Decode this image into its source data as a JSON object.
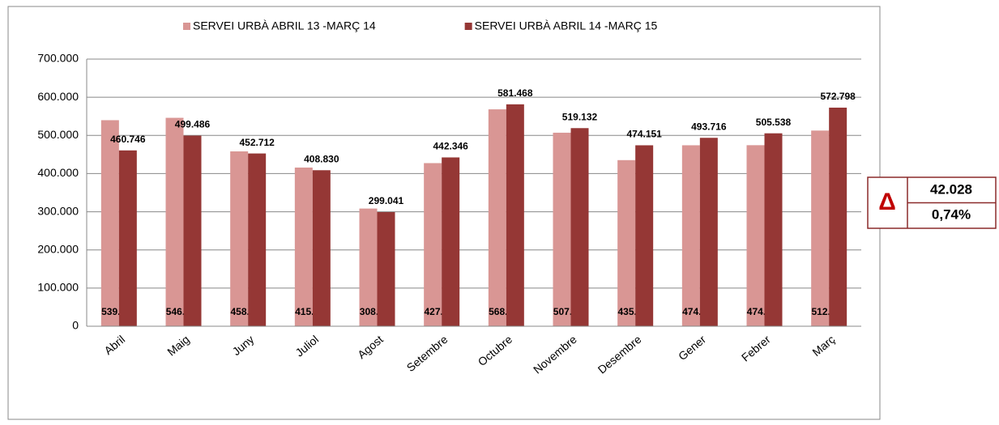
{
  "chart_data": {
    "type": "bar",
    "categories": [
      "Abril",
      "Maig",
      "Juny",
      "Juliol",
      "Agost",
      "Setembre",
      "Octubre",
      "Novembre",
      "Desembre",
      "Gener",
      "Febrer",
      "Març"
    ],
    "series": [
      {
        "name": "SERVEI URBÀ ABRIL 13 -MARÇ 14",
        "color": "#d99694",
        "values": [
          539934,
          546123,
          458179,
          415770,
          308405,
          427447,
          568366,
          507107,
          435259,
          474204,
          474404,
          512738
        ],
        "value_labels": [
          "539.934",
          "546.123",
          "458.179",
          "415.770",
          "308.405",
          "427.447",
          "568.366",
          "507.107",
          "435.259",
          "474.204",
          "474.404",
          "512.738"
        ]
      },
      {
        "name": "SERVEI URBÀ ABRIL 14 -MARÇ 15",
        "color": "#953735",
        "values": [
          460746,
          499486,
          452712,
          408830,
          299041,
          442346,
          581468,
          519132,
          474151,
          493716,
          505538,
          572798
        ],
        "value_labels": [
          "460.746",
          "499.486",
          "452.712",
          "408.830",
          "299.041",
          "442.346",
          "581.468",
          "519.132",
          "474.151",
          "493.716",
          "505.538",
          "572.798"
        ]
      }
    ],
    "ylim": [
      0,
      700000
    ],
    "yticks": [
      0,
      {
        "value": 100000,
        "label": "100.000"
      },
      {
        "value": 200000,
        "label": "200.000"
      },
      {
        "value": 300000,
        "label": "300.000"
      },
      {
        "value": 400000,
        "label": "400.000"
      },
      {
        "value": 500000,
        "label": "500.000"
      },
      {
        "value": 600000,
        "label": "600.000"
      },
      {
        "value": 700000,
        "label": "700.000"
      }
    ],
    "grid": true,
    "legend": "top",
    "delta_box": {
      "symbol": "Δ",
      "lines": [
        "42.028",
        "0,74%"
      ]
    }
  }
}
